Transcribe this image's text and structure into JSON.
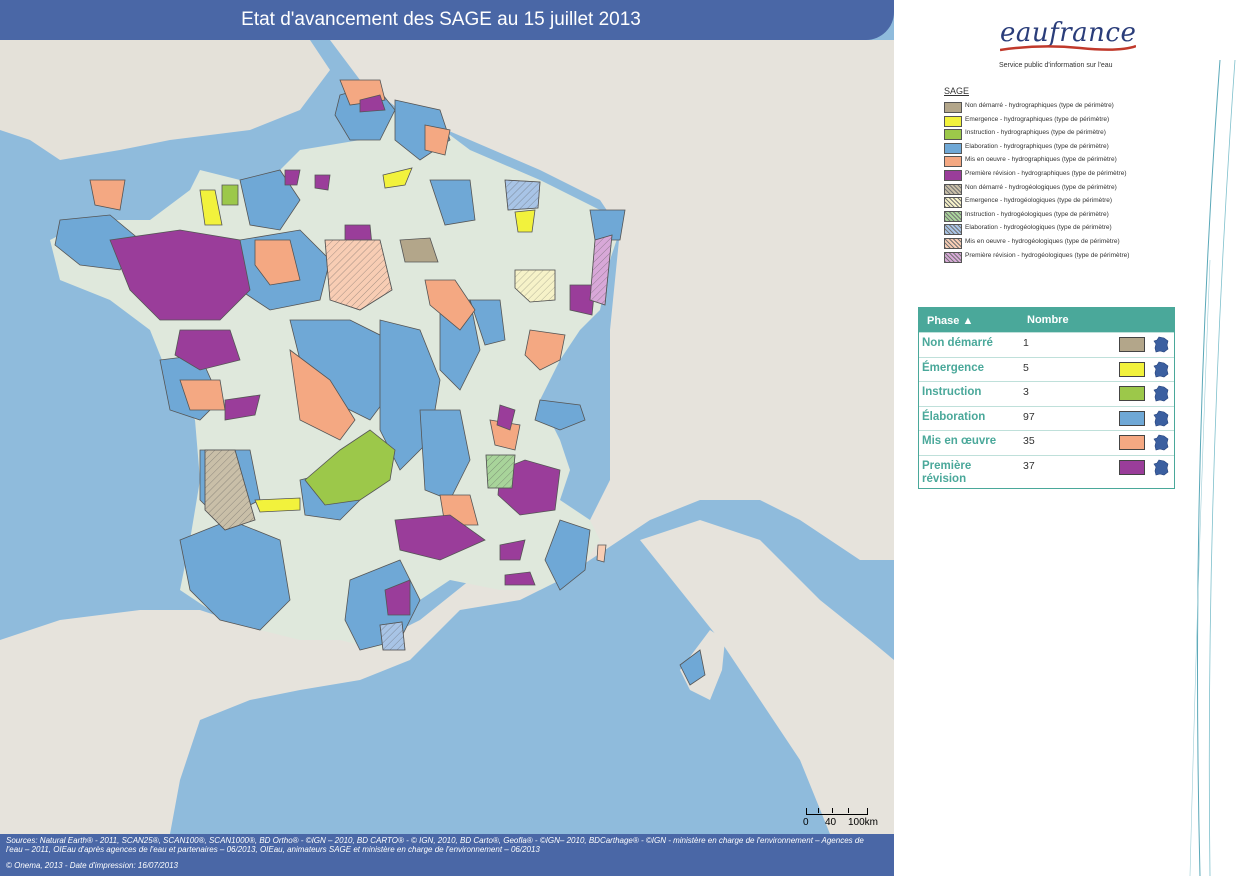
{
  "title": "Etat d'avancement des SAGE au 15 juillet 2013",
  "logo": {
    "name": "eaufrance",
    "subtitle": "Service public d'information sur l'eau"
  },
  "legend": {
    "title": "SAGE",
    "items": [
      {
        "label": "Non démarré - hydrographiques (type de périmètre)",
        "color": "#b3a68a",
        "pattern": "solid"
      },
      {
        "label": "Emergence - hydrographiques (type de périmètre)",
        "color": "#f2f23c",
        "pattern": "solid"
      },
      {
        "label": "Instruction - hydrographiques (type de périmètre)",
        "color": "#9cc84a",
        "pattern": "solid"
      },
      {
        "label": "Elaboration - hydrographiques (type de périmètre)",
        "color": "#6fa8d6",
        "pattern": "solid"
      },
      {
        "label": "Mis en oeuvre - hydrographiques (type de périmètre)",
        "color": "#f4a882",
        "pattern": "solid"
      },
      {
        "label": "Première révision - hydrographiques (type de périmètre)",
        "color": "#9a3d9a",
        "pattern": "solid"
      },
      {
        "label": "Non démarré - hydrogéologiques (type de périmètre)",
        "color": "#c9bfa8",
        "pattern": "hatch"
      },
      {
        "label": "Emergence - hydrogéologiques (type de périmètre)",
        "color": "#f6f2c8",
        "pattern": "hatch"
      },
      {
        "label": "Instruction - hydrogéologiques (type de périmètre)",
        "color": "#a8d49a",
        "pattern": "hatch"
      },
      {
        "label": "Elaboration - hydrogéologiques (type de périmètre)",
        "color": "#a8c4e6",
        "pattern": "hatch"
      },
      {
        "label": "Mis en oeuvre - hydrogéologiques (type de périmètre)",
        "color": "#f8cdb4",
        "pattern": "hatch"
      },
      {
        "label": "Première révision - hydrogéologiques (type de périmètre)",
        "color": "#d8a8d8",
        "pattern": "hatch"
      }
    ]
  },
  "phase_table": {
    "header_phase": "Phase",
    "header_count": "Nombre",
    "rows": [
      {
        "name": "Non démarré",
        "count": "1",
        "color": "#b3a68a"
      },
      {
        "name": "Émergence",
        "count": "5",
        "color": "#f2f23c"
      },
      {
        "name": "Instruction",
        "count": "3",
        "color": "#9cc84a"
      },
      {
        "name": "Élaboration",
        "count": "97",
        "color": "#6fa8d6"
      },
      {
        "name": "Mis en œuvre",
        "count": "35",
        "color": "#f4a882"
      },
      {
        "name": "Première révision",
        "count": "37",
        "color": "#9a3d9a"
      }
    ]
  },
  "scale": {
    "t0": "0",
    "t1": "40",
    "t2": "100km"
  },
  "footer": {
    "sources": "Sources: Natural Earth® - 2011, SCAN25®, SCAN100®, SCAN1000®, BD Ortho® - ©IGN – 2010, BD CARTO® - © IGN, 2010, BD Carto®, Geofla® - ©IGN– 2010, BDCarthage® - ©IGN - ministère en charge de l'environnement – Agences de l'eau – 2011, OIEau d'après agences de l'eau et partenaires – 06/2013, OIEau, animateurs SAGE et ministère en charge de l'environnement – 06/2013",
    "copyright": "© Onema, 2013 - Date d'impression: 16/07/2013"
  },
  "colors": {
    "sea": "#8fbbdc",
    "land_france": "#dfe8dc",
    "land_other": "#e6e3dc",
    "title_bar": "#4a67a6",
    "table_accent": "#4aa89a"
  }
}
